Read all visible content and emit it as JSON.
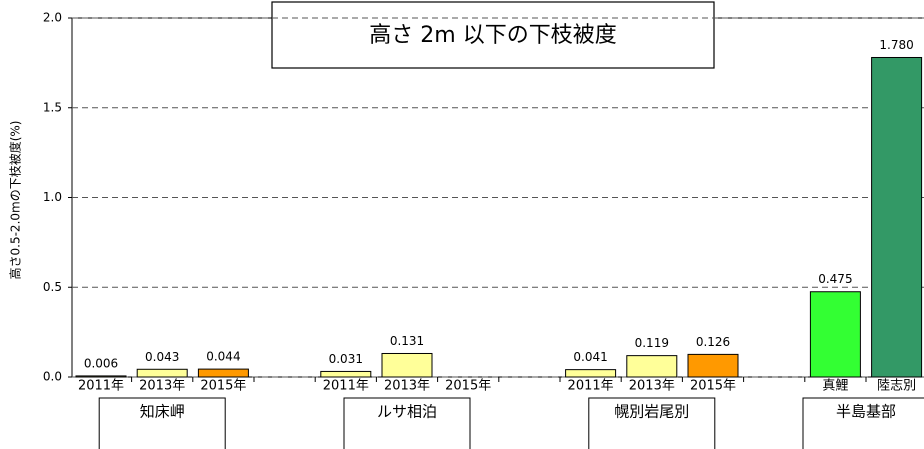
{
  "chart_data": {
    "type": "bar",
    "title": "高さ 2m 以下の下枝被度",
    "y_label": "高さ0.5-2.0mの下枝被度(%)",
    "ylim": [
      0,
      2
    ],
    "yticks": [
      {
        "value": 0,
        "label": "0.0"
      },
      0.5,
      {
        "value": 1,
        "label": "1.0"
      },
      1.5,
      {
        "value": 2,
        "label": "2.0"
      }
    ],
    "grid": true,
    "groups": [
      {
        "name": "知床岬",
        "categories": [
          "2011年",
          "2013年",
          "2015年"
        ],
        "values": [
          0.006,
          0.043,
          0.044
        ],
        "value_labels": [
          "0.006",
          "0.043",
          "0.044"
        ],
        "colors": [
          "#ffff99",
          "#ffff99",
          "#ff9900"
        ]
      },
      {
        "name": "ルサ相泊",
        "categories": [
          "2011年",
          "2013年",
          "2015年"
        ],
        "values": [
          0.031,
          0.131,
          null
        ],
        "value_labels": [
          "0.031",
          "0.131",
          null
        ],
        "colors": [
          "#ffff99",
          "#ffff99",
          "#ff9900"
        ]
      },
      {
        "name": "幌別岩尾別",
        "categories": [
          "2011年",
          "2013年",
          "2015年"
        ],
        "values": [
          0.041,
          0.119,
          0.126
        ],
        "value_labels": [
          "0.041",
          "0.119",
          "0.126"
        ],
        "colors": [
          "#ffff99",
          "#ffff99",
          "#ff9900"
        ]
      },
      {
        "name": "半島基部",
        "categories": [
          "真鯉",
          "陸志別"
        ],
        "values": [
          0.475,
          1.78
        ],
        "value_labels": [
          "0.475",
          "1.780"
        ],
        "colors": [
          "#33ff33",
          "#339966"
        ]
      }
    ]
  }
}
